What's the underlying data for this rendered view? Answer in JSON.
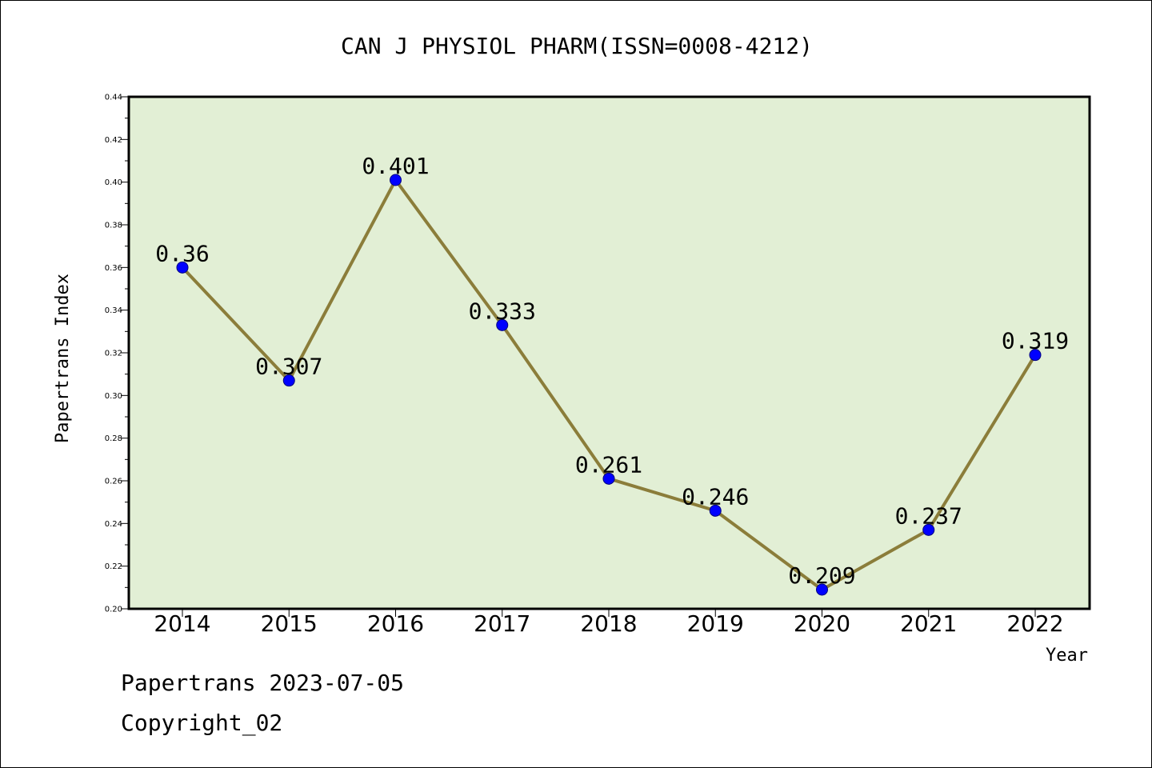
{
  "chart_data": {
    "type": "line",
    "title": "CAN J PHYSIOL PHARM(ISSN=0008-4212)",
    "xlabel": "Year",
    "ylabel": "Papertrans Index",
    "categories": [
      "2014",
      "2015",
      "2016",
      "2017",
      "2018",
      "2019",
      "2020",
      "2021",
      "2022"
    ],
    "series": [
      {
        "values": [
          0.36,
          0.307,
          0.401,
          0.333,
          0.261,
          0.246,
          0.209,
          0.237,
          0.319
        ],
        "labels": [
          "0.36",
          "0.307",
          "0.401",
          "0.333",
          "0.261",
          "0.246",
          "0.209",
          "0.237",
          "0.319"
        ]
      }
    ],
    "ylim": [
      0.2,
      0.44
    ],
    "yticks": [
      "0.20",
      "0.22",
      "0.24",
      "0.26",
      "0.28",
      "0.30",
      "0.32",
      "0.34",
      "0.36",
      "0.38",
      "0.40",
      "0.42",
      "0.44"
    ],
    "grid": false,
    "colors": {
      "plot_background": "#e2efd5",
      "line": "#8b7d3a",
      "marker": "#0000ff",
      "axis": "#000000"
    }
  },
  "footer": {
    "date_line": "Papertrans 2023-07-05",
    "copyright_line": "Copyright_02"
  }
}
